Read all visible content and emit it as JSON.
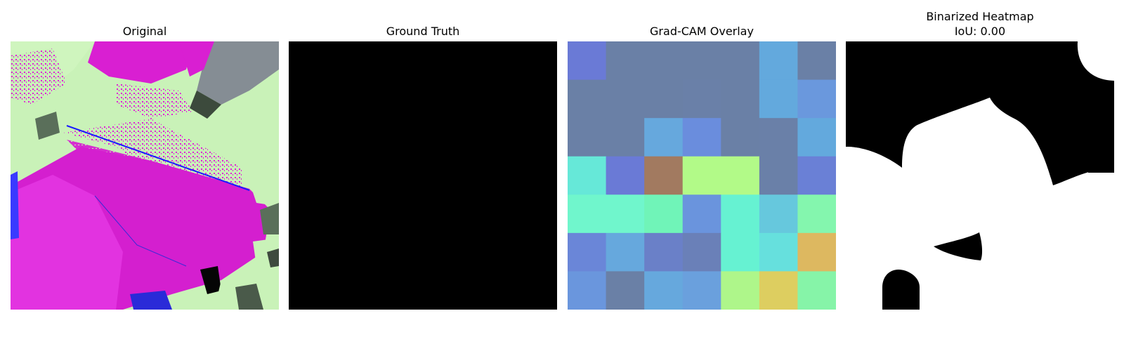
{
  "panels": [
    {
      "title": "Original"
    },
    {
      "title": "Ground Truth"
    },
    {
      "title": "Grad-CAM Overlay"
    },
    {
      "title": "Binarized Heatmap",
      "subtitle": "IoU: 0.00"
    }
  ],
  "gradcam_grid": [
    [
      "#6a7ad6",
      "#6a80a6",
      "#6a80a6",
      "#6a80a6",
      "#6a80a6",
      "#63a9dd",
      "#6a80a6"
    ],
    [
      "#6a80a6",
      "#6a80a6",
      "#6a80a6",
      "#6a80a8",
      "#6a80a6",
      "#63a9dd",
      "#6a98dd"
    ],
    [
      "#6a80a6",
      "#6a80a6",
      "#66a8dd",
      "#6a8ddd",
      "#6a80a6",
      "#6a80a8",
      "#63a9dd"
    ],
    [
      "#66e8d8",
      "#6a7ad6",
      "#a27a60",
      "#b2fa88",
      "#b2fa88",
      "#6a80a8",
      "#6a80d6"
    ],
    [
      "#70f6cc",
      "#70f6cc",
      "#70f4b8",
      "#6a94dd",
      "#66f2d2",
      "#66c8dd",
      "#84f6ae"
    ],
    [
      "#6a86d8",
      "#66a8dd",
      "#6a80c8",
      "#6a80b8",
      "#66f2d2",
      "#66e0dd",
      "#ddb860"
    ],
    [
      "#6a96dd",
      "#6a80a6",
      "#66a8dd",
      "#6aa0dd",
      "#aef68a",
      "#ddce60",
      "#86f4a8"
    ]
  ]
}
